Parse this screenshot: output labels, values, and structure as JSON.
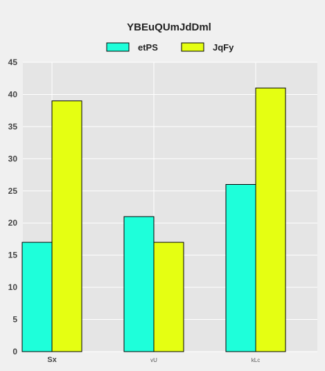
{
  "chart_data": {
    "type": "bar",
    "title": "YBEuQUmJdDml",
    "xlabel": "",
    "ylabel": "",
    "categories": [
      "Sx",
      "vU",
      "kLc"
    ],
    "series": [
      {
        "name": "etPS",
        "values": [
          17,
          21,
          26
        ],
        "color": "#1effda"
      },
      {
        "name": "JqFy",
        "values": [
          39,
          17,
          41
        ],
        "color": "#e5ff12"
      }
    ],
    "ylim": [
      0,
      45
    ],
    "yticks": [
      0,
      5,
      10,
      15,
      20,
      25,
      30,
      35,
      40,
      45
    ],
    "grid": true,
    "legend_position": "top-center",
    "background": "#e5e5e5",
    "page_background": "#f0f0f0"
  }
}
